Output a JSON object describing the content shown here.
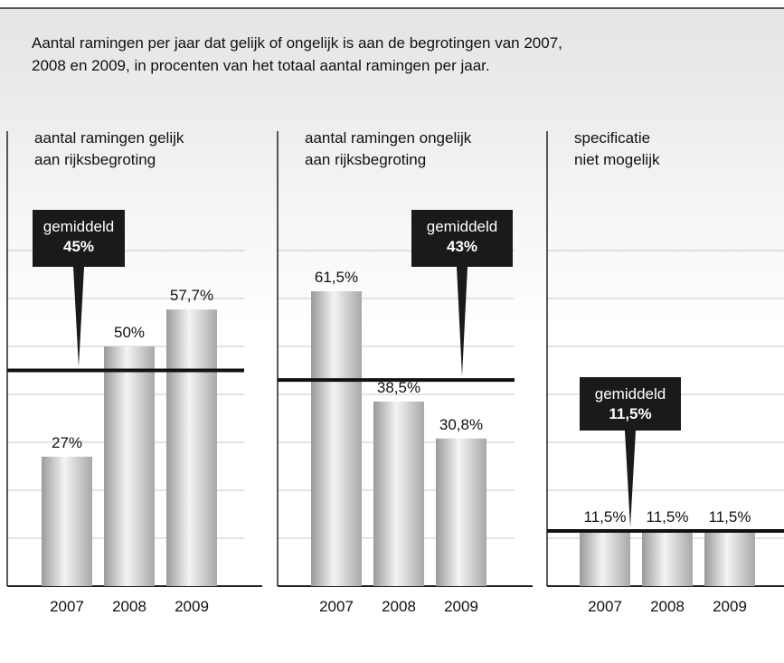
{
  "title": [
    "Aantal ramingen per jaar dat gelijk of ongelijk is aan de  begrotingen van 2007,",
    "2008 en 2009, in procenten van het totaal aantal ramingen per jaar."
  ],
  "chart_data": [
    {
      "type": "bar",
      "title": [
        "aantal ramingen gelijk",
        "aan rijksbegroting"
      ],
      "categories": [
        "2007",
        "2008",
        "2009"
      ],
      "values": [
        27,
        50,
        57.7
      ],
      "value_labels": [
        "27%",
        "50%",
        "57,7%"
      ],
      "mean": {
        "label": "gemiddeld",
        "value": 45,
        "value_label": "45%"
      },
      "ylim": [
        0,
        95
      ],
      "yticks": [
        10,
        20,
        30,
        40,
        50,
        60,
        70
      ],
      "grid": true
    },
    {
      "type": "bar",
      "title": [
        "aantal ramingen ongelijk",
        "aan rijksbegroting"
      ],
      "categories": [
        "2007",
        "2008",
        "2009"
      ],
      "values": [
        61.5,
        38.5,
        30.8
      ],
      "value_labels": [
        "61,5%",
        "38,5%",
        "30,8%"
      ],
      "mean": {
        "label": "gemiddeld",
        "value": 43,
        "value_label": "43%"
      },
      "ylim": [
        0,
        95
      ],
      "yticks": [
        10,
        20,
        30,
        40,
        50,
        60,
        70
      ],
      "grid": true
    },
    {
      "type": "bar",
      "title": [
        "specificatie",
        "niet mogelijk"
      ],
      "categories": [
        "2007",
        "2008",
        "2009"
      ],
      "values": [
        11.5,
        11.5,
        11.5
      ],
      "value_labels": [
        "11,5%",
        "11,5%",
        "11,5%"
      ],
      "mean": {
        "label": "gemiddeld",
        "value": 11.5,
        "value_label": "11,5%"
      },
      "ylim": [
        0,
        95
      ],
      "yticks": [
        10,
        20,
        30,
        40,
        50,
        60,
        70
      ],
      "grid": true
    }
  ]
}
